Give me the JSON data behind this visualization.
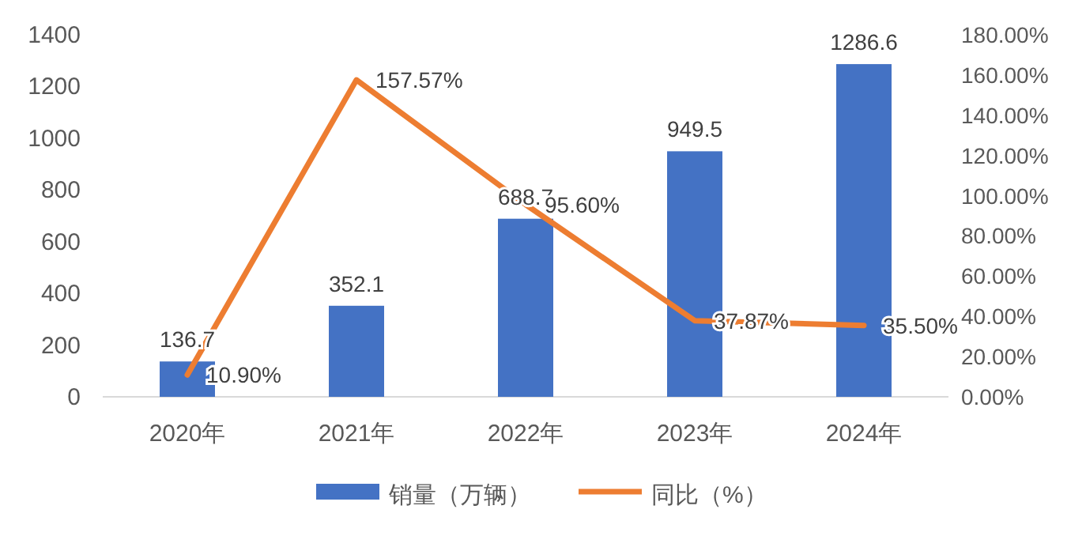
{
  "chart_data": {
    "type": "bar",
    "categories": [
      "2020年",
      "2021年",
      "2022年",
      "2023年",
      "2024年"
    ],
    "series": [
      {
        "name": "销量（万辆）",
        "color": "#4472c4",
        "values": [
          136.7,
          352.1,
          688.7,
          949.5,
          1286.6
        ],
        "value_labels": [
          "136.7",
          "352.1",
          "688.7",
          "949.5",
          "1286.6"
        ]
      },
      {
        "name": "同比（%）",
        "type": "line",
        "axis": "y2",
        "color": "#ed7d31",
        "marker": "none",
        "values": [
          10.9,
          157.57,
          95.6,
          37.87,
          35.5
        ],
        "value_labels": [
          "10.90%",
          "157.57%",
          "95.60%",
          "37.87%",
          "35.50%"
        ]
      }
    ],
    "ylim": [
      0,
      1400
    ],
    "yticks": [
      0,
      200,
      400,
      600,
      800,
      1000,
      1200,
      1400
    ],
    "y2lim": [
      0,
      180
    ],
    "y2ticks": [
      {
        "value": 0,
        "label": "0.00%"
      },
      {
        "value": 20,
        "label": "20.00%"
      },
      {
        "value": 40,
        "label": "40.00%"
      },
      {
        "value": 60,
        "label": "60.00%"
      },
      {
        "value": 80,
        "label": "80.00%"
      },
      {
        "value": 100,
        "label": "100.00%"
      },
      {
        "value": 120,
        "label": "120.00%"
      },
      {
        "value": 140,
        "label": "140.00%"
      },
      {
        "value": 160,
        "label": "160.00%"
      },
      {
        "value": 180,
        "label": "180.00%"
      }
    ],
    "grid": false,
    "legend": "bottom"
  }
}
